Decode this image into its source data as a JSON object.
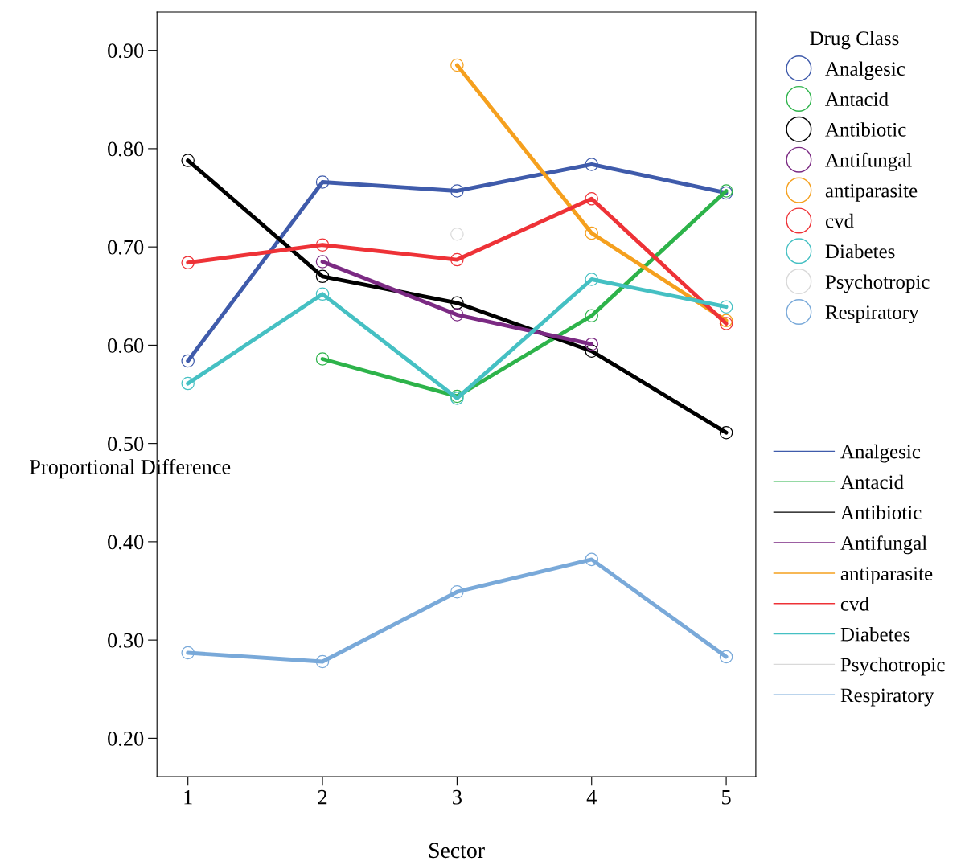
{
  "chart_data": {
    "type": "line",
    "xlabel": "Sector",
    "ylabel": "Proportional Difference",
    "legend_title": "Drug Class",
    "x": [
      1,
      2,
      3,
      4,
      5
    ],
    "xlim": [
      0.77,
      5.22
    ],
    "xticks": [
      1,
      2,
      3,
      4,
      5
    ],
    "ylim": [
      0.161,
      0.939
    ],
    "yticks": [
      {
        "value": 0.2,
        "label": "0.20"
      },
      {
        "value": 0.3,
        "label": "0.30"
      },
      {
        "value": 0.4,
        "label": "0.40"
      },
      {
        "value": 0.5,
        "label": "0.50"
      },
      {
        "value": 0.6,
        "label": "0.60"
      },
      {
        "value": 0.7,
        "label": "0.70"
      },
      {
        "value": 0.8,
        "label": "0.80"
      },
      {
        "value": 0.9,
        "label": "0.90"
      }
    ],
    "marker": "circle",
    "line_style": "solid",
    "grid": false,
    "legend": "right",
    "series": [
      {
        "name": "Analgesic",
        "color": "#3f5bab",
        "values": [
          0.584,
          0.766,
          0.757,
          0.784,
          0.755
        ]
      },
      {
        "name": "Antacid",
        "color": "#2db34a",
        "values": [
          null,
          0.586,
          0.548,
          0.63,
          0.757
        ]
      },
      {
        "name": "Antibiotic",
        "color": "#000000",
        "values": [
          0.788,
          0.67,
          0.643,
          0.594,
          0.511
        ]
      },
      {
        "name": "Antifungal",
        "color": "#7b2a83",
        "values": [
          null,
          0.685,
          0.631,
          0.601,
          null
        ]
      },
      {
        "name": "antiparasite",
        "color": "#f5a01e",
        "values": [
          null,
          null,
          0.885,
          0.714,
          0.625
        ]
      },
      {
        "name": "cvd",
        "color": "#ee3237",
        "values": [
          0.684,
          0.702,
          0.687,
          0.749,
          0.622
        ]
      },
      {
        "name": "Diabetes",
        "color": "#45c0c3",
        "values": [
          0.561,
          0.652,
          0.546,
          0.667,
          0.639
        ]
      },
      {
        "name": "Psychotropic",
        "color": "#d9d9d9",
        "values": [
          null,
          null,
          0.713,
          null,
          null
        ]
      },
      {
        "name": "Respiratory",
        "color": "#79a9d9",
        "values": [
          0.287,
          0.278,
          0.349,
          0.382,
          0.283
        ]
      }
    ]
  }
}
